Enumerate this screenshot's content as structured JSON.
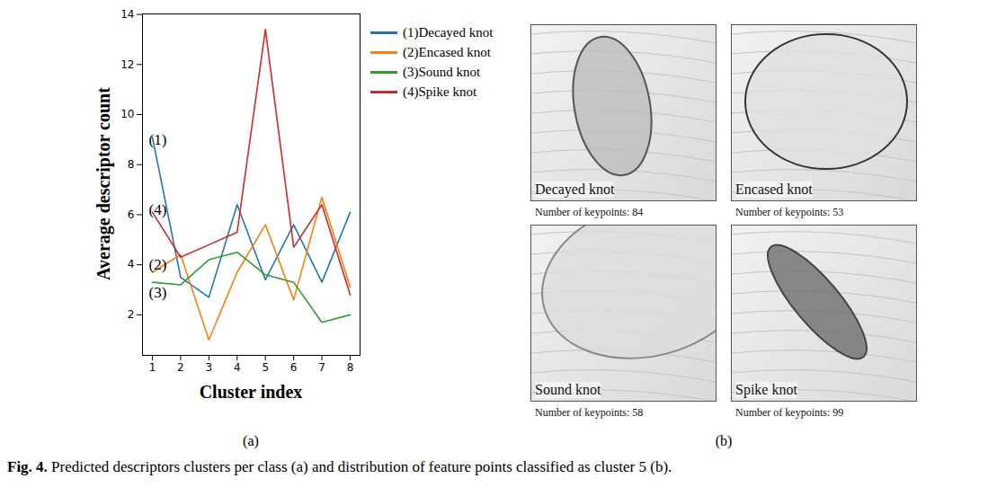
{
  "chart_data": {
    "type": "line",
    "x": [
      1,
      2,
      3,
      4,
      5,
      6,
      7,
      8
    ],
    "xlabel": "Cluster index",
    "ylabel": "Average descriptor count",
    "xlim": [
      0.65,
      8.35
    ],
    "ylim": [
      0.38,
      14.02
    ],
    "xticks": [
      1,
      2,
      3,
      4,
      5,
      6,
      7,
      8
    ],
    "yticks": [
      2,
      4,
      6,
      8,
      10,
      12,
      14
    ],
    "grid": false,
    "legend": "right",
    "series": [
      {
        "name": "(1)Decayed knot",
        "color": "#1f77b4",
        "values": [
          9.1,
          3.5,
          2.7,
          6.4,
          3.4,
          5.6,
          3.3,
          6.1
        ]
      },
      {
        "name": "(2)Encased knot",
        "color": "#ff7f0e",
        "values": [
          3.7,
          4.4,
          1.0,
          3.7,
          5.6,
          2.6,
          6.7,
          3.1
        ]
      },
      {
        "name": "(3)Sound knot",
        "color": "#2ca02c",
        "values": [
          3.3,
          3.2,
          4.2,
          4.5,
          3.6,
          3.3,
          1.7,
          2.0
        ]
      },
      {
        "name": "(4)Spike knot",
        "color": "#d62728",
        "values": [
          6.1,
          4.3,
          4.8,
          5.3,
          13.4,
          4.7,
          6.4,
          2.8
        ]
      }
    ],
    "annotations": [
      {
        "text": "(1)",
        "x": 1,
        "y": 9.0
      },
      {
        "text": "(4)",
        "x": 1,
        "y": 6.2
      },
      {
        "text": "(2)",
        "x": 1,
        "y": 4.0
      },
      {
        "text": "(3)",
        "x": 1,
        "y": 2.9
      }
    ]
  },
  "panel_labels": [
    "(a)",
    "(b)"
  ],
  "images": [
    {
      "label": "Decayed knot",
      "keypoints": "Number of keypoints: 84"
    },
    {
      "label": "Encased knot",
      "keypoints": "Number of keypoints: 53"
    },
    {
      "label": "Sound knot",
      "keypoints": "Number of keypoints: 58"
    },
    {
      "label": "Spike knot",
      "keypoints": "Number of keypoints: 99"
    }
  ],
  "caption": {
    "label": "Fig. 4.",
    "text": "Predicted descriptors clusters per class (a) and distribution of feature points classified as cluster 5 (b)."
  }
}
